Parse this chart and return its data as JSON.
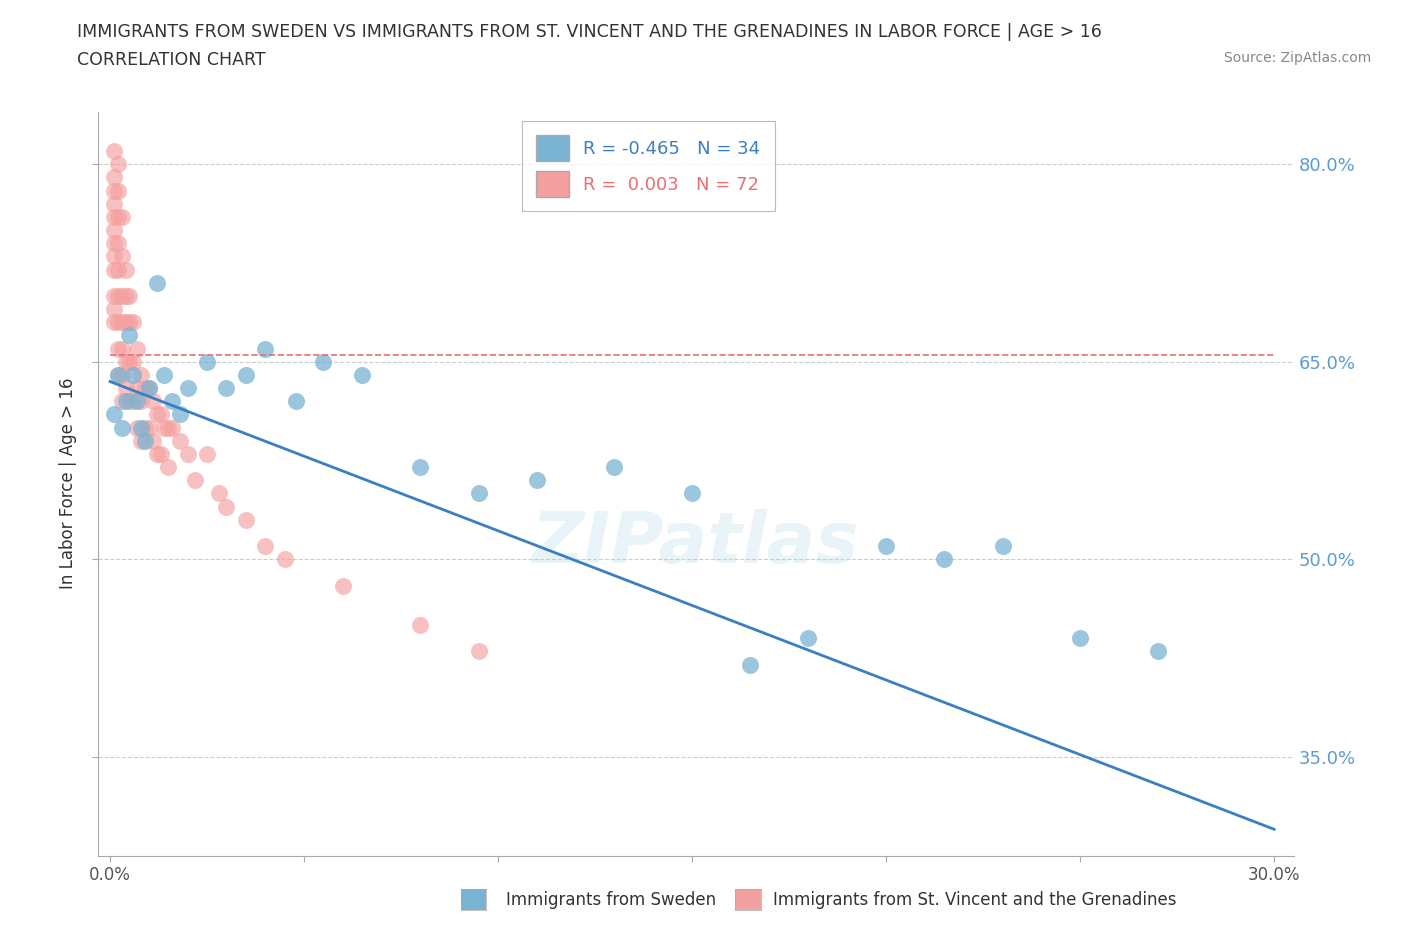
{
  "title": "IMMIGRANTS FROM SWEDEN VS IMMIGRANTS FROM ST. VINCENT AND THE GRENADINES IN LABOR FORCE | AGE > 16",
  "subtitle": "CORRELATION CHART",
  "source": "Source: ZipAtlas.com",
  "ylabel": "In Labor Force | Age > 16",
  "xlim": [
    -0.003,
    0.305
  ],
  "ylim": [
    0.275,
    0.84
  ],
  "yticks": [
    0.35,
    0.5,
    0.65,
    0.8
  ],
  "xticks": [
    0.0,
    0.05,
    0.1,
    0.15,
    0.2,
    0.25,
    0.3
  ],
  "ytick_labels": [
    "35.0%",
    "50.0%",
    "65.0%",
    "80.0%"
  ],
  "sweden_color": "#7ab3d4",
  "svg_color": "#f4a0a0",
  "sweden_line_color": "#3a7fc1",
  "svg_line_color": "#e87070",
  "sweden_R": -0.465,
  "sweden_N": 34,
  "svg_R": 0.003,
  "svg_N": 72,
  "watermark": "ZIPatlas",
  "sweden_trend_x0": 0.0,
  "sweden_trend_y0": 0.635,
  "sweden_trend_x1": 0.3,
  "sweden_trend_y1": 0.295,
  "svg_trend_y": 0.655,
  "sweden_x": [
    0.001,
    0.002,
    0.003,
    0.004,
    0.005,
    0.006,
    0.007,
    0.008,
    0.009,
    0.01,
    0.012,
    0.014,
    0.016,
    0.018,
    0.02,
    0.025,
    0.03,
    0.035,
    0.04,
    0.048,
    0.055,
    0.065,
    0.08,
    0.095,
    0.11,
    0.13,
    0.15,
    0.165,
    0.18,
    0.2,
    0.215,
    0.23,
    0.25,
    0.27
  ],
  "sweden_y": [
    0.61,
    0.64,
    0.6,
    0.62,
    0.67,
    0.64,
    0.62,
    0.6,
    0.59,
    0.63,
    0.71,
    0.64,
    0.62,
    0.61,
    0.63,
    0.65,
    0.63,
    0.64,
    0.66,
    0.62,
    0.65,
    0.64,
    0.57,
    0.55,
    0.56,
    0.57,
    0.55,
    0.42,
    0.44,
    0.51,
    0.5,
    0.51,
    0.44,
    0.43
  ],
  "svg_x": [
    0.001,
    0.001,
    0.001,
    0.001,
    0.001,
    0.001,
    0.001,
    0.001,
    0.001,
    0.001,
    0.001,
    0.001,
    0.002,
    0.002,
    0.002,
    0.002,
    0.002,
    0.002,
    0.002,
    0.002,
    0.002,
    0.003,
    0.003,
    0.003,
    0.003,
    0.003,
    0.003,
    0.003,
    0.004,
    0.004,
    0.004,
    0.004,
    0.004,
    0.005,
    0.005,
    0.005,
    0.005,
    0.006,
    0.006,
    0.006,
    0.007,
    0.007,
    0.007,
    0.008,
    0.008,
    0.008,
    0.009,
    0.009,
    0.01,
    0.01,
    0.011,
    0.011,
    0.012,
    0.012,
    0.013,
    0.013,
    0.014,
    0.015,
    0.015,
    0.016,
    0.018,
    0.02,
    0.022,
    0.025,
    0.028,
    0.03,
    0.035,
    0.04,
    0.045,
    0.06,
    0.08,
    0.095
  ],
  "svg_y": [
    0.81,
    0.79,
    0.78,
    0.77,
    0.76,
    0.75,
    0.74,
    0.73,
    0.72,
    0.7,
    0.69,
    0.68,
    0.8,
    0.78,
    0.76,
    0.74,
    0.72,
    0.7,
    0.68,
    0.66,
    0.64,
    0.76,
    0.73,
    0.7,
    0.68,
    0.66,
    0.64,
    0.62,
    0.72,
    0.7,
    0.68,
    0.65,
    0.63,
    0.7,
    0.68,
    0.65,
    0.62,
    0.68,
    0.65,
    0.62,
    0.66,
    0.63,
    0.6,
    0.64,
    0.62,
    0.59,
    0.63,
    0.6,
    0.63,
    0.6,
    0.62,
    0.59,
    0.61,
    0.58,
    0.61,
    0.58,
    0.6,
    0.6,
    0.57,
    0.6,
    0.59,
    0.58,
    0.56,
    0.58,
    0.55,
    0.54,
    0.53,
    0.51,
    0.5,
    0.48,
    0.45,
    0.43
  ]
}
